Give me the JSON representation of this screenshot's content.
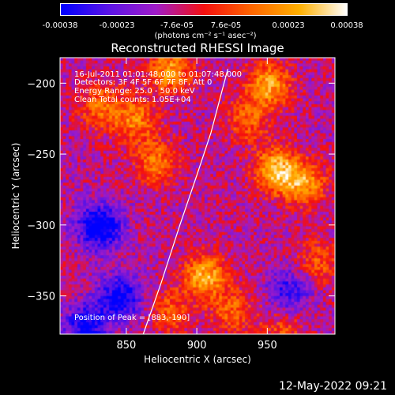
{
  "colorbar": {
    "tick_labels": [
      "-0.00038",
      "-0.00023",
      "-7.6e-05",
      "7.6e-05",
      "0.00023",
      "0.00038"
    ],
    "unit_label": "(photons cm⁻² s⁻¹ asec⁻²)",
    "colors": [
      "#0000ff",
      "#5a14e6",
      "#a01cc8",
      "#f51010",
      "#ff6600",
      "#ffb000",
      "#ffffff"
    ]
  },
  "chart_data": {
    "type": "heatmap",
    "title": "Reconstructed RHESSI Image",
    "xlabel": "Heliocentric X (arcsec)",
    "ylabel": "Heliocentric Y (arcsec)",
    "xlim": [
      803,
      998
    ],
    "ylim": [
      -377,
      -182
    ],
    "x_ticks": [
      850,
      900,
      950
    ],
    "y_ticks": [
      -200,
      -250,
      -300,
      -350
    ],
    "x_tick_labels": [
      "850",
      "900",
      "950"
    ],
    "y_tick_labels": [
      "−200",
      "−250",
      "−300",
      "−350"
    ],
    "value_range": [
      -0.00038,
      0.00038
    ],
    "annotations": [
      "16-Jul-2011 01:01:48.000 to 01:07:48.000",
      "Detectors: 3F 4F 5F 6F 7F 8F, Att 0",
      "Energy Range: 25.0 - 50.0 keV",
      "Clean    Total counts: 1.05E+04"
    ],
    "peak_label": "Position of Peak = [883,-190]",
    "peak": [
      883,
      -190
    ],
    "limb_curve": [
      [
        862,
        -377
      ],
      [
        875,
        -340
      ],
      [
        888,
        -300
      ],
      [
        900,
        -265
      ],
      [
        910,
        -235
      ],
      [
        918,
        -205
      ],
      [
        922,
        -190
      ]
    ],
    "hot_spots": [
      {
        "x": 950,
        "y": -200,
        "intensity": 0.00032
      },
      {
        "x": 955,
        "y": -260,
        "intensity": 0.00036
      },
      {
        "x": 975,
        "y": -270,
        "intensity": 0.0003
      },
      {
        "x": 905,
        "y": -335,
        "intensity": 0.00034
      },
      {
        "x": 880,
        "y": -190,
        "intensity": 0.0003
      },
      {
        "x": 855,
        "y": -225,
        "intensity": 0.00025
      },
      {
        "x": 830,
        "y": -215,
        "intensity": 0.00022
      },
      {
        "x": 870,
        "y": -255,
        "intensity": 0.00024
      },
      {
        "x": 935,
        "y": -225,
        "intensity": 0.0002
      },
      {
        "x": 985,
        "y": -325,
        "intensity": 0.00018
      },
      {
        "x": 925,
        "y": -360,
        "intensity": 0.0002
      },
      {
        "x": 880,
        "y": -360,
        "intensity": 0.00018
      },
      {
        "x": 960,
        "y": -375,
        "intensity": 0.00016
      }
    ],
    "cold_spots": [
      {
        "x": 830,
        "y": -300,
        "intensity": -0.00038
      },
      {
        "x": 845,
        "y": -350,
        "intensity": -0.0003
      },
      {
        "x": 820,
        "y": -370,
        "intensity": -0.00028
      },
      {
        "x": 965,
        "y": -345,
        "intensity": -0.00022
      }
    ],
    "legend": "none"
  },
  "footer": {
    "date": "12-May-2022 09:21"
  }
}
